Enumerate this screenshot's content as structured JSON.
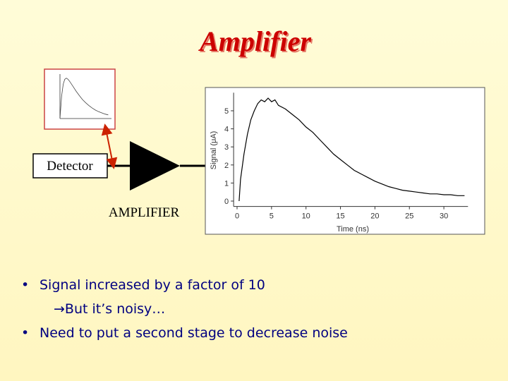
{
  "title": "Amplifier",
  "diagram": {
    "detector_label": "Detector",
    "amplifier_label": "AMPLIFIER"
  },
  "inset_chart": {
    "type": "line",
    "x": [
      0,
      1,
      2,
      3,
      4,
      5,
      6,
      8,
      10,
      12,
      14,
      16,
      18,
      20,
      22,
      24,
      26,
      28,
      30
    ],
    "values": [
      0,
      0.55,
      0.85,
      0.97,
      1,
      0.97,
      0.92,
      0.8,
      0.68,
      0.57,
      0.47,
      0.39,
      0.32,
      0.26,
      0.21,
      0.17,
      0.14,
      0.11,
      0.09
    ],
    "xlim": [
      0,
      32
    ],
    "ylim": [
      0,
      1.1
    ]
  },
  "chart_data": {
    "type": "line",
    "xlabel": "Time (ns)",
    "ylabel": "Signal (μA)",
    "color": "#000000",
    "x": [
      0.3,
      0.5,
      1,
      1.5,
      2,
      2.5,
      3,
      3.5,
      4,
      4.5,
      5,
      5.5,
      6,
      7,
      8,
      9,
      10,
      11,
      12,
      13,
      14,
      15,
      16,
      17,
      18,
      19,
      20,
      21,
      22,
      23,
      24,
      25,
      26,
      27,
      28,
      29,
      30,
      31,
      32,
      33
    ],
    "values": [
      0,
      1.2,
      2.6,
      3.7,
      4.5,
      5.0,
      5.4,
      5.6,
      5.5,
      5.7,
      5.5,
      5.6,
      5.3,
      5.1,
      4.8,
      4.5,
      4.1,
      3.8,
      3.4,
      3.0,
      2.6,
      2.3,
      2.0,
      1.7,
      1.5,
      1.3,
      1.1,
      0.95,
      0.8,
      0.7,
      0.6,
      0.55,
      0.5,
      0.45,
      0.4,
      0.4,
      0.35,
      0.35,
      0.3,
      0.3
    ],
    "xlim": [
      -0.5,
      33.5
    ],
    "ylim": [
      -0.3,
      6.0
    ],
    "xticks": [
      0,
      5,
      10,
      15,
      20,
      25,
      30
    ],
    "yticks": [
      0,
      1,
      2,
      3,
      4,
      5
    ]
  },
  "bullets": [
    {
      "text": "Signal increased by a factor of 10",
      "sub": "→But it’s noisy…"
    },
    {
      "text": "Need to put a second stage to decrease noise"
    }
  ]
}
